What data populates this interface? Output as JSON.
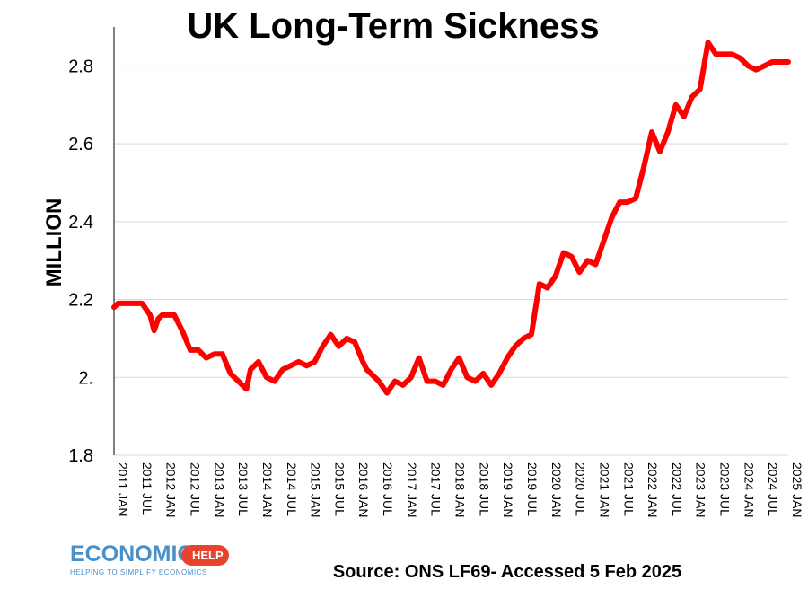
{
  "chart_data": {
    "type": "line",
    "title": "UK Long-Term Sickness",
    "ylabel": "MILLION",
    "xlabel": "",
    "ylim": [
      1.8,
      2.9
    ],
    "yticks": [
      1.8,
      2.0,
      2.2,
      2.4,
      2.6,
      2.8
    ],
    "ytick_labels": [
      "1.8",
      "2.",
      "2.2",
      "2.4",
      "2.6",
      "2.8"
    ],
    "xtick_labels": [
      "2011 JAN",
      "2011 JUL",
      "2012 JAN",
      "2012 JUL",
      "2013 JAN",
      "2013 JUL",
      "2014 JAN",
      "2014 JUL",
      "2015 JAN",
      "2015 JUL",
      "2016 JAN",
      "2016 JUL",
      "2017 JAN",
      "2017 JUL",
      "2018 JAN",
      "2018 JUL",
      "2019 JAN",
      "2019 JUL",
      "2020 JAN",
      "2020 JUL",
      "2021 JAN",
      "2021 JUL",
      "2022 JAN",
      "2022 JUL",
      "2023 JAN",
      "2023 JUL",
      "2024 JAN",
      "2024 JUL",
      "2025 JAN"
    ],
    "grid": true,
    "line_color": "#ff0000",
    "series": [
      {
        "x": [
          "2011-01",
          "2011-02",
          "2011-04",
          "2011-06",
          "2011-08",
          "2011-10",
          "2011-11",
          "2011-12",
          "2012-01",
          "2012-04",
          "2012-06",
          "2012-08",
          "2012-10",
          "2012-12",
          "2013-02",
          "2013-04",
          "2013-06",
          "2013-08",
          "2013-10",
          "2013-11",
          "2014-01",
          "2014-03",
          "2014-05",
          "2014-07",
          "2014-09",
          "2014-11",
          "2015-01",
          "2015-03",
          "2015-05",
          "2015-07",
          "2015-09",
          "2015-11",
          "2016-01",
          "2016-03",
          "2016-04",
          "2016-05",
          "2016-07",
          "2016-09",
          "2016-11",
          "2017-01",
          "2017-03",
          "2017-05",
          "2017-07",
          "2017-09",
          "2017-11",
          "2018-01",
          "2018-03",
          "2018-05",
          "2018-07",
          "2018-09",
          "2018-11",
          "2019-01",
          "2019-03",
          "2019-05",
          "2019-07",
          "2019-09",
          "2019-11",
          "2020-01",
          "2020-03",
          "2020-05",
          "2020-07",
          "2020-09",
          "2020-11",
          "2021-01",
          "2021-03",
          "2021-05",
          "2021-07",
          "2021-09",
          "2021-11",
          "2022-01",
          "2022-03",
          "2022-05",
          "2022-07",
          "2022-09",
          "2022-11",
          "2023-01",
          "2023-03",
          "2023-05",
          "2023-07",
          "2023-09",
          "2023-11",
          "2024-01",
          "2024-03",
          "2024-05",
          "2024-07",
          "2024-09",
          "2024-10",
          "2024-11",
          "2025-01"
        ],
        "values": [
          2.18,
          2.19,
          2.19,
          2.19,
          2.19,
          2.16,
          2.12,
          2.15,
          2.16,
          2.16,
          2.12,
          2.07,
          2.07,
          2.05,
          2.06,
          2.06,
          2.01,
          1.99,
          1.97,
          2.02,
          2.04,
          2.0,
          1.99,
          2.02,
          2.03,
          2.04,
          2.03,
          2.04,
          2.08,
          2.11,
          2.08,
          2.1,
          2.09,
          2.04,
          2.02,
          2.01,
          1.99,
          1.96,
          1.99,
          1.98,
          2.0,
          2.05,
          1.99,
          1.99,
          1.98,
          2.02,
          2.05,
          2.0,
          1.99,
          2.01,
          1.98,
          2.01,
          2.05,
          2.08,
          2.1,
          2.11,
          2.24,
          2.23,
          2.26,
          2.32,
          2.31,
          2.27,
          2.3,
          2.29,
          2.35,
          2.41,
          2.45,
          2.45,
          2.46,
          2.54,
          2.63,
          2.58,
          2.63,
          2.7,
          2.67,
          2.72,
          2.74,
          2.86,
          2.83,
          2.83,
          2.83,
          2.82,
          2.8,
          2.79,
          2.8,
          2.81,
          2.81,
          2.81,
          2.81
        ]
      }
    ]
  },
  "footer": {
    "source": "Source: ONS LF69- Accessed 5 Feb 2025",
    "logo_main": "ECONOMICS",
    "logo_badge": "HELP",
    "logo_tagline": "HELPING TO SIMPLIFY ECONOMICS"
  }
}
